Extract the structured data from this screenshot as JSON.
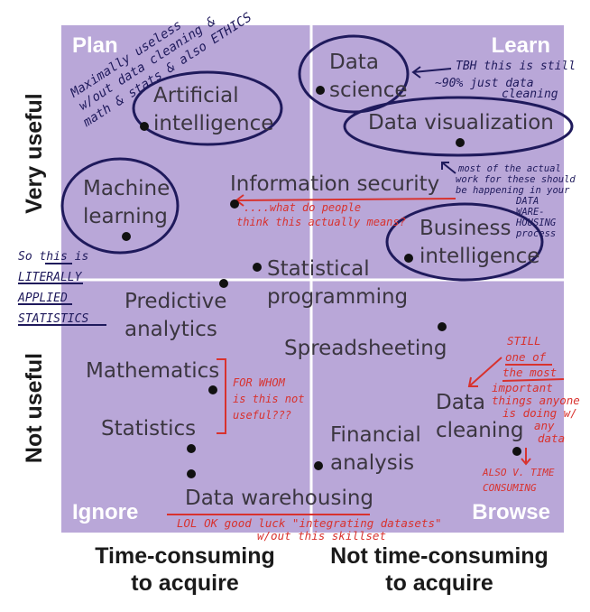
{
  "quadrants": [
    "Plan",
    "Learn",
    "Ignore",
    "Browse"
  ],
  "y_axis": [
    "Very useful",
    "Not useful"
  ],
  "x_axis": [
    [
      "Time-consuming",
      "to acquire"
    ],
    [
      "Not time-consuming",
      "to acquire"
    ]
  ],
  "items": [
    {
      "lines": [
        "Data",
        "science"
      ]
    },
    {
      "lines": [
        "Artificial",
        "intelligence"
      ]
    },
    {
      "lines": [
        "Data visualization"
      ]
    },
    {
      "lines": [
        "Machine",
        "learning"
      ]
    },
    {
      "lines": [
        "Information security"
      ]
    },
    {
      "lines": [
        "Business",
        "intelligence"
      ]
    },
    {
      "lines": [
        "Statistical",
        "programming"
      ]
    },
    {
      "lines": [
        "Predictive",
        "analytics"
      ]
    },
    {
      "lines": [
        "Spreadsheeting"
      ]
    },
    {
      "lines": [
        "Mathematics"
      ]
    },
    {
      "lines": [
        "Statistics"
      ]
    },
    {
      "lines": [
        "Financial",
        "analysis"
      ]
    },
    {
      "lines": [
        "Data",
        "cleaning"
      ]
    },
    {
      "lines": [
        "Data warehousing"
      ]
    }
  ],
  "annotations": [
    {
      "lines": [
        "Maximally useless",
        "w/out data cleaning &",
        "math & stats & also ETHICS"
      ]
    },
    {
      "lines": [
        "TBH this is still",
        "~90% just data",
        "cleaning"
      ]
    },
    {
      "lines": [
        "most of the actual",
        "work for these should",
        "be happening in your",
        "DATA",
        "WARE-",
        "HOUSING",
        "process"
      ]
    },
    {
      "lines": [
        "So this is",
        "LITERALLY",
        "APPLIED",
        "STATISTICS"
      ]
    },
    {
      "lines": [
        "....what do people",
        "think this actually means?"
      ]
    },
    {
      "lines": [
        "FOR WHOM",
        "is this not",
        "useful???"
      ]
    },
    {
      "lines": [
        "STILL",
        "one of",
        "the most",
        "important",
        "things anyone",
        "is doing w/",
        "any",
        "data"
      ]
    },
    {
      "lines": [
        "ALSO V. TIME",
        "CONSUMING"
      ]
    },
    {
      "lines": [
        "LOL OK good luck \"integrating datasets\"",
        "w/out this skillset"
      ]
    }
  ]
}
